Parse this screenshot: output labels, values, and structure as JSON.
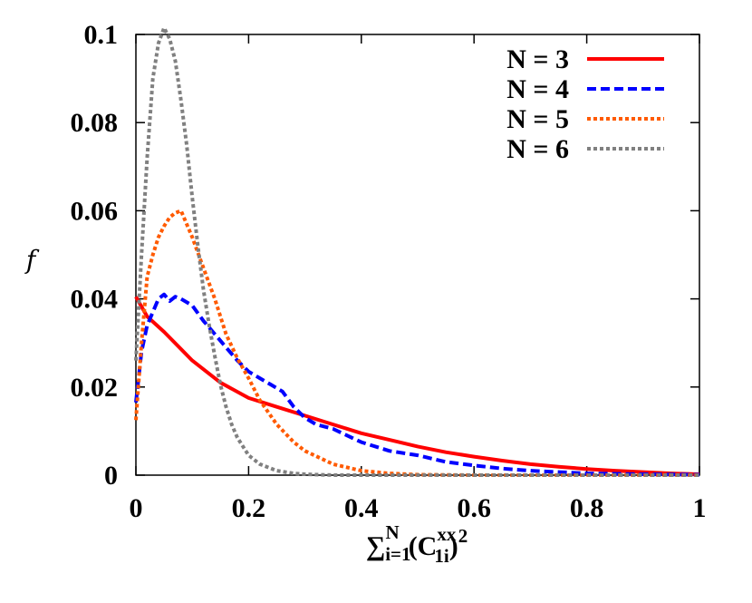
{
  "chart_data": {
    "type": "line",
    "title": "",
    "ylabel": "f",
    "xlabel": {
      "sum": "∑",
      "lower": "i=1",
      "upper": "N",
      "open": "(C",
      "sup": "xx",
      "sub": "1i",
      "close": ")",
      "power": "2"
    },
    "xlim": [
      0,
      1
    ],
    "ylim": [
      0,
      0.1
    ],
    "xticks": [
      "0",
      "0.2",
      "0.4",
      "0.6",
      "0.8",
      "1"
    ],
    "yticks": [
      "0",
      "0.02",
      "0.04",
      "0.06",
      "0.08",
      "0.1"
    ],
    "grid": false,
    "legend_position": "top-right",
    "series": [
      {
        "name": "N = 3",
        "color": "#ff0000",
        "style": "solid",
        "x": [
          0,
          0.02,
          0.05,
          0.1,
          0.15,
          0.2,
          0.25,
          0.3,
          0.35,
          0.4,
          0.45,
          0.5,
          0.55,
          0.6,
          0.65,
          0.7,
          0.75,
          0.8,
          0.85,
          0.9,
          0.95,
          1.0
        ],
        "y": [
          0.0405,
          0.036,
          0.0325,
          0.026,
          0.021,
          0.0175,
          0.0155,
          0.0135,
          0.0115,
          0.0095,
          0.008,
          0.0065,
          0.0052,
          0.0042,
          0.0033,
          0.0025,
          0.0019,
          0.0014,
          0.001,
          0.0007,
          0.0004,
          0.0002
        ]
      },
      {
        "name": "N = 4",
        "color": "#0000ff",
        "style": "dashed",
        "x": [
          0,
          0.01,
          0.02,
          0.03,
          0.04,
          0.05,
          0.06,
          0.07,
          0.08,
          0.1,
          0.12,
          0.14,
          0.16,
          0.18,
          0.2,
          0.22,
          0.24,
          0.26,
          0.28,
          0.3,
          0.32,
          0.35,
          0.4,
          0.45,
          0.5,
          0.55,
          0.6,
          0.65,
          0.7,
          0.75,
          0.8,
          0.9,
          1.0
        ],
        "y": [
          0.0165,
          0.028,
          0.034,
          0.037,
          0.04,
          0.041,
          0.0395,
          0.0405,
          0.04,
          0.0385,
          0.035,
          0.032,
          0.029,
          0.026,
          0.0235,
          0.022,
          0.0205,
          0.019,
          0.0155,
          0.013,
          0.0115,
          0.0105,
          0.0075,
          0.0055,
          0.0045,
          0.003,
          0.0022,
          0.0015,
          0.001,
          0.0007,
          0.0004,
          0.0002,
          0.0001
        ]
      },
      {
        "name": "N = 5",
        "color": "#ff5a00",
        "style": "dotted",
        "x": [
          0,
          0.01,
          0.02,
          0.03,
          0.04,
          0.05,
          0.06,
          0.07,
          0.08,
          0.1,
          0.12,
          0.14,
          0.16,
          0.18,
          0.2,
          0.22,
          0.25,
          0.28,
          0.3,
          0.35,
          0.4,
          0.45,
          0.5,
          0.6,
          0.7,
          0.8,
          1.0
        ],
        "y": [
          0.0125,
          0.03,
          0.045,
          0.05,
          0.054,
          0.0565,
          0.0585,
          0.0595,
          0.06,
          0.054,
          0.047,
          0.04,
          0.032,
          0.0265,
          0.022,
          0.017,
          0.0115,
          0.0075,
          0.0055,
          0.0025,
          0.001,
          0.0004,
          0.0001,
          0,
          0,
          0,
          0
        ]
      },
      {
        "name": "N = 6",
        "color": "#808080",
        "style": "dotted",
        "x": [
          0,
          0.01,
          0.02,
          0.03,
          0.04,
          0.05,
          0.06,
          0.07,
          0.08,
          0.09,
          0.1,
          0.11,
          0.12,
          0.13,
          0.14,
          0.15,
          0.16,
          0.17,
          0.18,
          0.2,
          0.22,
          0.25,
          0.28,
          0.3,
          0.35,
          0.4,
          0.5,
          1.0
        ],
        "y": [
          0.026,
          0.05,
          0.072,
          0.09,
          0.098,
          0.1015,
          0.099,
          0.094,
          0.085,
          0.075,
          0.063,
          0.052,
          0.042,
          0.034,
          0.027,
          0.0205,
          0.0155,
          0.0115,
          0.0085,
          0.0045,
          0.0025,
          0.001,
          0.0004,
          0.0002,
          0,
          0,
          0,
          0
        ]
      }
    ]
  }
}
